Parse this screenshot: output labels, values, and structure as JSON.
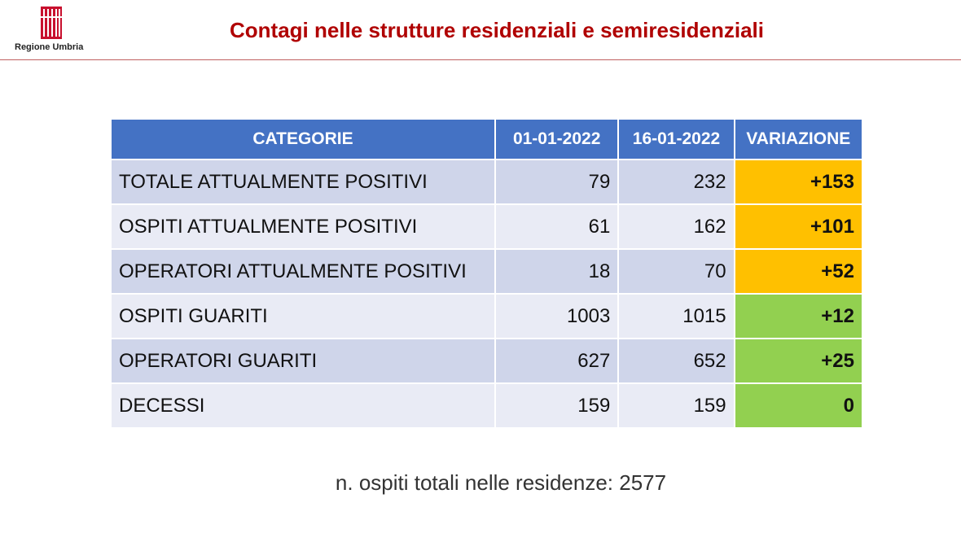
{
  "header": {
    "logo_text": "Regione Umbria",
    "title": "Contagi nelle strutture residenziali e semiresidenziali"
  },
  "table": {
    "columns": [
      "CATEGORIE",
      "01-01-2022",
      "16-01-2022",
      "VARIAZIONE"
    ],
    "rows": [
      {
        "category": "TOTALE ATTUALMENTE POSITIVI",
        "d1": "79",
        "d2": "232",
        "variation": "+153",
        "status": "increase"
      },
      {
        "category": "OSPITI ATTUALMENTE POSITIVI",
        "d1": "61",
        "d2": "162",
        "variation": "+101",
        "status": "increase"
      },
      {
        "category": "OPERATORI ATTUALMENTE POSITIVI",
        "d1": "18",
        "d2": "70",
        "variation": "+52",
        "status": "increase"
      },
      {
        "category": "OSPITI GUARITI",
        "d1": "1003",
        "d2": "1015",
        "variation": "+12",
        "status": "good"
      },
      {
        "category": "OPERATORI GUARITI",
        "d1": "627",
        "d2": "652",
        "variation": "+25",
        "status": "good"
      },
      {
        "category": "DECESSI",
        "d1": "159",
        "d2": "159",
        "variation": "0",
        "status": "good"
      }
    ]
  },
  "footnote": "n. ospiti totali nelle residenze: 2577",
  "colors": {
    "title": "#b00000",
    "header_bg": "#4472c4",
    "increase": "#ffc000",
    "good": "#92d050"
  }
}
